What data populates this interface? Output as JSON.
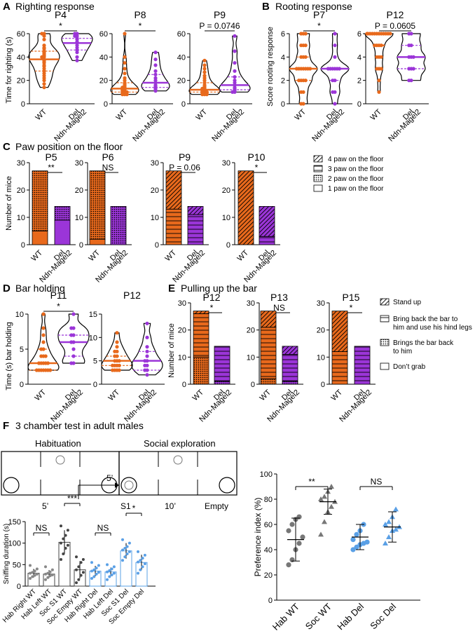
{
  "colors": {
    "wt": "#e8691c",
    "del": "#9b35d8",
    "hab": "#808080",
    "soc": "#555555",
    "blue": "#5aa0e6"
  },
  "panel_a": {
    "letter": "A",
    "title": "Righting response",
    "ylabel": "Time for righting (s)",
    "x_categories": [
      "WT",
      "Del",
      "Ndn-Magel2"
    ],
    "plots": [
      {
        "label": "P4",
        "sig": "*",
        "ymax": 60,
        "ticks": [
          "0",
          "20",
          "40",
          "60"
        ],
        "wt": [
          60,
          60,
          58,
          55,
          50,
          48,
          47,
          45,
          44,
          43,
          42,
          41,
          40,
          40,
          38,
          37,
          36,
          35,
          33,
          32,
          30,
          28,
          26,
          24,
          22,
          20,
          17,
          14
        ],
        "del": [
          60,
          60,
          58,
          58,
          56,
          55,
          53,
          52,
          50,
          48,
          46,
          44,
          40,
          37
        ]
      },
      {
        "label": "P8",
        "sig": "*",
        "ymax": 60,
        "ticks": [
          "0",
          "20",
          "40",
          "60"
        ],
        "wt": [
          60,
          40,
          35,
          30,
          26,
          22,
          20,
          18,
          17,
          16,
          15,
          14,
          14,
          13,
          13,
          12,
          12,
          11,
          11,
          10,
          10,
          10,
          9,
          9,
          8,
          8,
          8
        ],
        "del": [
          44,
          38,
          33,
          28,
          25,
          22,
          20,
          18,
          16,
          15,
          14,
          13,
          12,
          11
        ]
      },
      {
        "label": "P9",
        "sig": "P = 0.0746",
        "ymax": 60,
        "ticks": [
          "0",
          "20",
          "40",
          "60"
        ],
        "wt": [
          37,
          33,
          30,
          27,
          24,
          22,
          20,
          18,
          16,
          15,
          14,
          13,
          13,
          12,
          12,
          11,
          11,
          10,
          10,
          10,
          9,
          9,
          9,
          8,
          8,
          8
        ],
        "del": [
          58,
          45,
          35,
          28,
          23,
          20,
          18,
          16,
          14,
          13,
          12,
          11,
          10,
          10
        ]
      }
    ]
  },
  "panel_b": {
    "letter": "B",
    "title": "Rooting response",
    "ylabel": "Score rooting response",
    "x_categories": [
      "WT",
      "Del",
      "Ndn-Magel2"
    ],
    "plots": [
      {
        "label": "P7",
        "sig": "*",
        "ymax": 6,
        "ticks": [
          "0",
          "2",
          "4",
          "6"
        ],
        "wt": [
          6,
          6,
          6,
          5,
          5,
          5,
          4,
          4,
          4,
          3,
          3,
          3,
          3,
          3,
          3,
          3,
          2,
          2,
          2,
          2,
          1,
          1,
          0,
          0
        ],
        "del": [
          6,
          5,
          4,
          3,
          3,
          3,
          3,
          3,
          3,
          2,
          2,
          1,
          1,
          0
        ]
      },
      {
        "label": "P12",
        "sig": "P = 0.0605",
        "ymax": 6,
        "ticks": [
          "0",
          "2",
          "4",
          "6"
        ],
        "wt": [
          6,
          6,
          6,
          6,
          6,
          6,
          6,
          6,
          6,
          6,
          6,
          6,
          5,
          5,
          5,
          5,
          4,
          4,
          4,
          3,
          3,
          3,
          2,
          1
        ],
        "del": [
          6,
          6,
          5,
          5,
          4,
          4,
          4,
          3,
          3,
          3,
          2,
          2
        ]
      }
    ]
  },
  "panel_c": {
    "letter": "C",
    "title": "Paw position on the floor",
    "ylabel": "Number of mice",
    "x_categories": [
      "WT",
      "Del",
      "Ndn-Magel2"
    ],
    "ticks": [
      "0",
      "10",
      "20",
      "30"
    ],
    "legend": [
      "4 paw on the floor",
      "3 paw on the floor",
      "2 paw on the floor",
      "1 paw on the floor"
    ],
    "plots": [
      {
        "label": "P5",
        "sig": "**",
        "wt": [
          0,
          0,
          22,
          5
        ],
        "del": [
          0,
          0,
          5,
          9
        ]
      },
      {
        "label": "P6",
        "sig": "NS",
        "wt": [
          0,
          0,
          25,
          2
        ],
        "del": [
          0,
          0,
          14,
          0
        ]
      },
      {
        "label": "P9",
        "sig": "P = 0.06",
        "wt": [
          14,
          13,
          0,
          0
        ],
        "del": [
          3,
          11,
          0,
          0
        ]
      },
      {
        "label": "P10",
        "sig": "*",
        "wt": [
          27,
          0,
          0,
          0
        ],
        "del": [
          11,
          3,
          0,
          0
        ]
      }
    ]
  },
  "panel_d": {
    "letter": "D",
    "title": "Bar holding",
    "ylabel": "Time (s) bar holding",
    "x_categories": [
      "WT",
      "Del",
      "Ndn-Magel2"
    ],
    "plots": [
      {
        "label": "P11",
        "sig": "*",
        "ymax": 10,
        "ticks": [
          "0",
          "5",
          "10"
        ],
        "wt": [
          10,
          8,
          7,
          6,
          5,
          5,
          4,
          4,
          4,
          3,
          3,
          3,
          3,
          3,
          2,
          2,
          2,
          2,
          2,
          2,
          2
        ],
        "del": [
          10,
          8,
          8,
          7,
          7,
          6,
          6,
          5,
          4,
          3,
          3
        ]
      },
      {
        "label": "P12",
        "sig": "",
        "ymax": 15,
        "ticks": [
          "0",
          "5",
          "10",
          "15"
        ],
        "wt": [
          11,
          9,
          8,
          7,
          7,
          6,
          6,
          5,
          5,
          5,
          4,
          4,
          4,
          4,
          3,
          3,
          3,
          3
        ],
        "del": [
          13,
          10,
          8,
          7,
          6,
          5,
          5,
          4,
          4,
          3,
          3,
          2
        ]
      }
    ]
  },
  "panel_e": {
    "letter": "E",
    "title": "Pulling up the bar",
    "ylabel": "Number of mice",
    "x_categories": [
      "WT",
      "Del",
      "Ndn-Magel2"
    ],
    "ticks": [
      "0",
      "10",
      "20",
      "30"
    ],
    "legend": [
      "Stand up",
      "Bring back the bar to",
      "him and use his hind legs",
      "Brings the bar back",
      "to him",
      "Don’t grab"
    ],
    "plots": [
      {
        "label": "P12",
        "sig": "*",
        "wt": [
          1,
          16,
          10,
          0
        ],
        "del": [
          0,
          13,
          1,
          0
        ]
      },
      {
        "label": "P13",
        "sig": "NS",
        "wt": [
          6,
          19,
          2,
          0
        ],
        "del": [
          3,
          10,
          1,
          0
        ]
      },
      {
        "label": "P15",
        "sig": "*",
        "wt": [
          15,
          12,
          0,
          0
        ],
        "del": [
          0,
          14,
          0,
          0
        ]
      }
    ]
  },
  "panel_f": {
    "letter": "F",
    "title": "3 chamber test in adult males",
    "habituation": "Habituation",
    "social": "Social exploration",
    "arrow_time": "5’",
    "hab_time": "5’",
    "soc_time": "10’",
    "s1": "S1",
    "empty": "Empty",
    "sniff": {
      "ylabel": "Sniffing duration (s)",
      "ylim": [
        0,
        150
      ],
      "ticks": [
        "0",
        "50",
        "100",
        "150"
      ],
      "categories": [
        "Hab Right WT",
        "Hab Left WT",
        "Soc S1 WT",
        "Soc Empty WT",
        "Hab Right Del",
        "Hab Left Del",
        "Soc S1 Del",
        "Soc Empty Del"
      ],
      "means": [
        30,
        28,
        102,
        38,
        35,
        33,
        82,
        55
      ],
      "sds": [
        10,
        9,
        28,
        20,
        12,
        10,
        18,
        18
      ],
      "points": [
        [
          18,
          22,
          25,
          28,
          30,
          32,
          35,
          40,
          48
        ],
        [
          15,
          20,
          24,
          26,
          28,
          30,
          33,
          38,
          45
        ],
        [
          62,
          75,
          88,
          95,
          100,
          110,
          118,
          130,
          140
        ],
        [
          8,
          15,
          25,
          32,
          38,
          45,
          55,
          62,
          68
        ],
        [
          18,
          22,
          28,
          32,
          35,
          38,
          42,
          48,
          55
        ],
        [
          15,
          22,
          26,
          30,
          33,
          36,
          40,
          45,
          50
        ],
        [
          60,
          68,
          75,
          80,
          84,
          88,
          92,
          100,
          108
        ],
        [
          30,
          38,
          45,
          52,
          56,
          60,
          65,
          72,
          80
        ]
      ],
      "sigs": [
        "NS",
        "***",
        "NS",
        "*"
      ]
    },
    "pref": {
      "ylabel": "Preference index (%)",
      "ylim": [
        0,
        100
      ],
      "ticks": [
        "0",
        "20",
        "40",
        "60",
        "80",
        "100"
      ],
      "categories": [
        "Hab WT",
        "Soc WT",
        "Hab Del",
        "Soc Del"
      ],
      "means": [
        48,
        78,
        50,
        58
      ],
      "sds": [
        17,
        10,
        10,
        12
      ],
      "points": [
        [
          28,
          32,
          40,
          45,
          50,
          55,
          60,
          64,
          66
        ],
        [
          52,
          62,
          70,
          74,
          78,
          80,
          82,
          86,
          90
        ],
        [
          40,
          42,
          44,
          45,
          46,
          48,
          52,
          55,
          60
        ],
        [
          45,
          50,
          55,
          56,
          58,
          60,
          62,
          66,
          72
        ]
      ],
      "sigs": [
        "**",
        "NS"
      ]
    }
  }
}
